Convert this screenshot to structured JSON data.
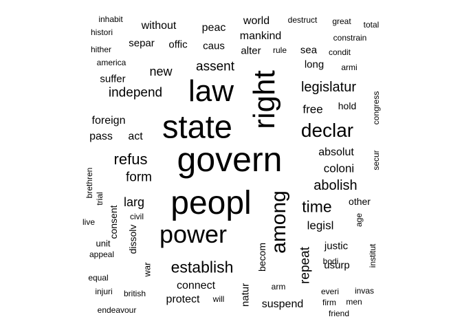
{
  "palette": {
    "background": "#ffffff",
    "text": "#000000"
  },
  "words": [
    {
      "text": "govern",
      "weight": 64,
      "rotated": false
    },
    {
      "text": "peopl",
      "weight": 62,
      "rotated": false
    },
    {
      "text": "state",
      "weight": 60,
      "rotated": false
    },
    {
      "text": "right",
      "weight": 56,
      "rotated": true
    },
    {
      "text": "law",
      "weight": 56,
      "rotated": false
    },
    {
      "text": "power",
      "weight": 46,
      "rotated": false
    },
    {
      "text": "among",
      "weight": 38,
      "rotated": true
    },
    {
      "text": "declar",
      "weight": 36,
      "rotated": false
    },
    {
      "text": "establish",
      "weight": 30,
      "rotated": false
    },
    {
      "text": "time",
      "weight": 30,
      "rotated": false
    },
    {
      "text": "refus",
      "weight": 28,
      "rotated": false
    },
    {
      "text": "abolish",
      "weight": 26,
      "rotated": false
    },
    {
      "text": "legislatur",
      "weight": 25,
      "rotated": false
    },
    {
      "text": "independ",
      "weight": 24,
      "rotated": false
    },
    {
      "text": "assent",
      "weight": 24,
      "rotated": false
    },
    {
      "text": "repeat",
      "weight": 24,
      "rotated": true
    },
    {
      "text": "form",
      "weight": 24,
      "rotated": false
    },
    {
      "text": "larg",
      "weight": 23,
      "rotated": false
    },
    {
      "text": "new",
      "weight": 23,
      "rotated": false
    },
    {
      "text": "coloni",
      "weight": 22,
      "rotated": false
    },
    {
      "text": "legisl",
      "weight": 22,
      "rotated": false
    },
    {
      "text": "free",
      "weight": 22,
      "rotated": false
    },
    {
      "text": "suspend",
      "weight": 20,
      "rotated": false
    },
    {
      "text": "protect",
      "weight": 20,
      "rotated": false
    },
    {
      "text": "absolut",
      "weight": 20,
      "rotated": false
    },
    {
      "text": "world",
      "weight": 20,
      "rotated": false
    },
    {
      "text": "without",
      "weight": 20,
      "rotated": false
    },
    {
      "text": "peac",
      "weight": 20,
      "rotated": false
    },
    {
      "text": "foreign",
      "weight": 20,
      "rotated": false
    },
    {
      "text": "connect",
      "weight": 20,
      "rotated": false
    },
    {
      "text": "mankind",
      "weight": 20,
      "rotated": false
    },
    {
      "text": "pass",
      "weight": 20,
      "rotated": false
    },
    {
      "text": "act",
      "weight": 20,
      "rotated": false
    },
    {
      "text": "suffer",
      "weight": 19,
      "rotated": false
    },
    {
      "text": "separ",
      "weight": 19,
      "rotated": false
    },
    {
      "text": "offic",
      "weight": 19,
      "rotated": false
    },
    {
      "text": "caus",
      "weight": 19,
      "rotated": false
    },
    {
      "text": "alter",
      "weight": 19,
      "rotated": false
    },
    {
      "text": "sea",
      "weight": 19,
      "rotated": false
    },
    {
      "text": "long",
      "weight": 19,
      "rotated": false
    },
    {
      "text": "usurp",
      "weight": 19,
      "rotated": false
    },
    {
      "text": "justic",
      "weight": 19,
      "rotated": false
    },
    {
      "text": "natur",
      "weight": 19,
      "rotated": true
    },
    {
      "text": "consent",
      "weight": 18,
      "rotated": true
    },
    {
      "text": "dissolv",
      "weight": 18,
      "rotated": true
    },
    {
      "text": "becom",
      "weight": 18,
      "rotated": true
    },
    {
      "text": "hold",
      "weight": 18,
      "rotated": false
    },
    {
      "text": "other",
      "weight": 18,
      "rotated": false
    },
    {
      "text": "unit",
      "weight": 17,
      "rotated": false
    },
    {
      "text": "war",
      "weight": 17,
      "rotated": true
    },
    {
      "text": "congress",
      "weight": 16,
      "rotated": true
    },
    {
      "text": "secur",
      "weight": 16,
      "rotated": true
    },
    {
      "text": "appeal",
      "weight": 15,
      "rotated": false
    },
    {
      "text": "equal",
      "weight": 15,
      "rotated": false
    },
    {
      "text": "injuri",
      "weight": 15,
      "rotated": false
    },
    {
      "text": "british",
      "weight": 15,
      "rotated": false
    },
    {
      "text": "endeavour",
      "weight": 15,
      "rotated": false
    },
    {
      "text": "will",
      "weight": 15,
      "rotated": false
    },
    {
      "text": "arm",
      "weight": 15,
      "rotated": false
    },
    {
      "text": "everi",
      "weight": 15,
      "rotated": false
    },
    {
      "text": "invas",
      "weight": 15,
      "rotated": false
    },
    {
      "text": "firm",
      "weight": 15,
      "rotated": false
    },
    {
      "text": "men",
      "weight": 15,
      "rotated": false
    },
    {
      "text": "friend",
      "weight": 15,
      "rotated": false
    },
    {
      "text": "bodi",
      "weight": 15,
      "rotated": false
    },
    {
      "text": "institut",
      "weight": 15,
      "rotated": true
    },
    {
      "text": "age",
      "weight": 15,
      "rotated": true
    },
    {
      "text": "trial",
      "weight": 15,
      "rotated": true
    },
    {
      "text": "brethren",
      "weight": 15,
      "rotated": true
    },
    {
      "text": "civil",
      "weight": 15,
      "rotated": false
    },
    {
      "text": "live",
      "weight": 15,
      "rotated": false
    },
    {
      "text": "america",
      "weight": 15,
      "rotated": false
    },
    {
      "text": "hither",
      "weight": 15,
      "rotated": false
    },
    {
      "text": "histori",
      "weight": 15,
      "rotated": false
    },
    {
      "text": "inhabit",
      "weight": 15,
      "rotated": false
    },
    {
      "text": "destruct",
      "weight": 15,
      "rotated": false
    },
    {
      "text": "great",
      "weight": 15,
      "rotated": false
    },
    {
      "text": "total",
      "weight": 15,
      "rotated": false
    },
    {
      "text": "constrain",
      "weight": 15,
      "rotated": false
    },
    {
      "text": "condit",
      "weight": 15,
      "rotated": false
    },
    {
      "text": "rule",
      "weight": 15,
      "rotated": false
    },
    {
      "text": "armi",
      "weight": 15,
      "rotated": false
    }
  ]
}
